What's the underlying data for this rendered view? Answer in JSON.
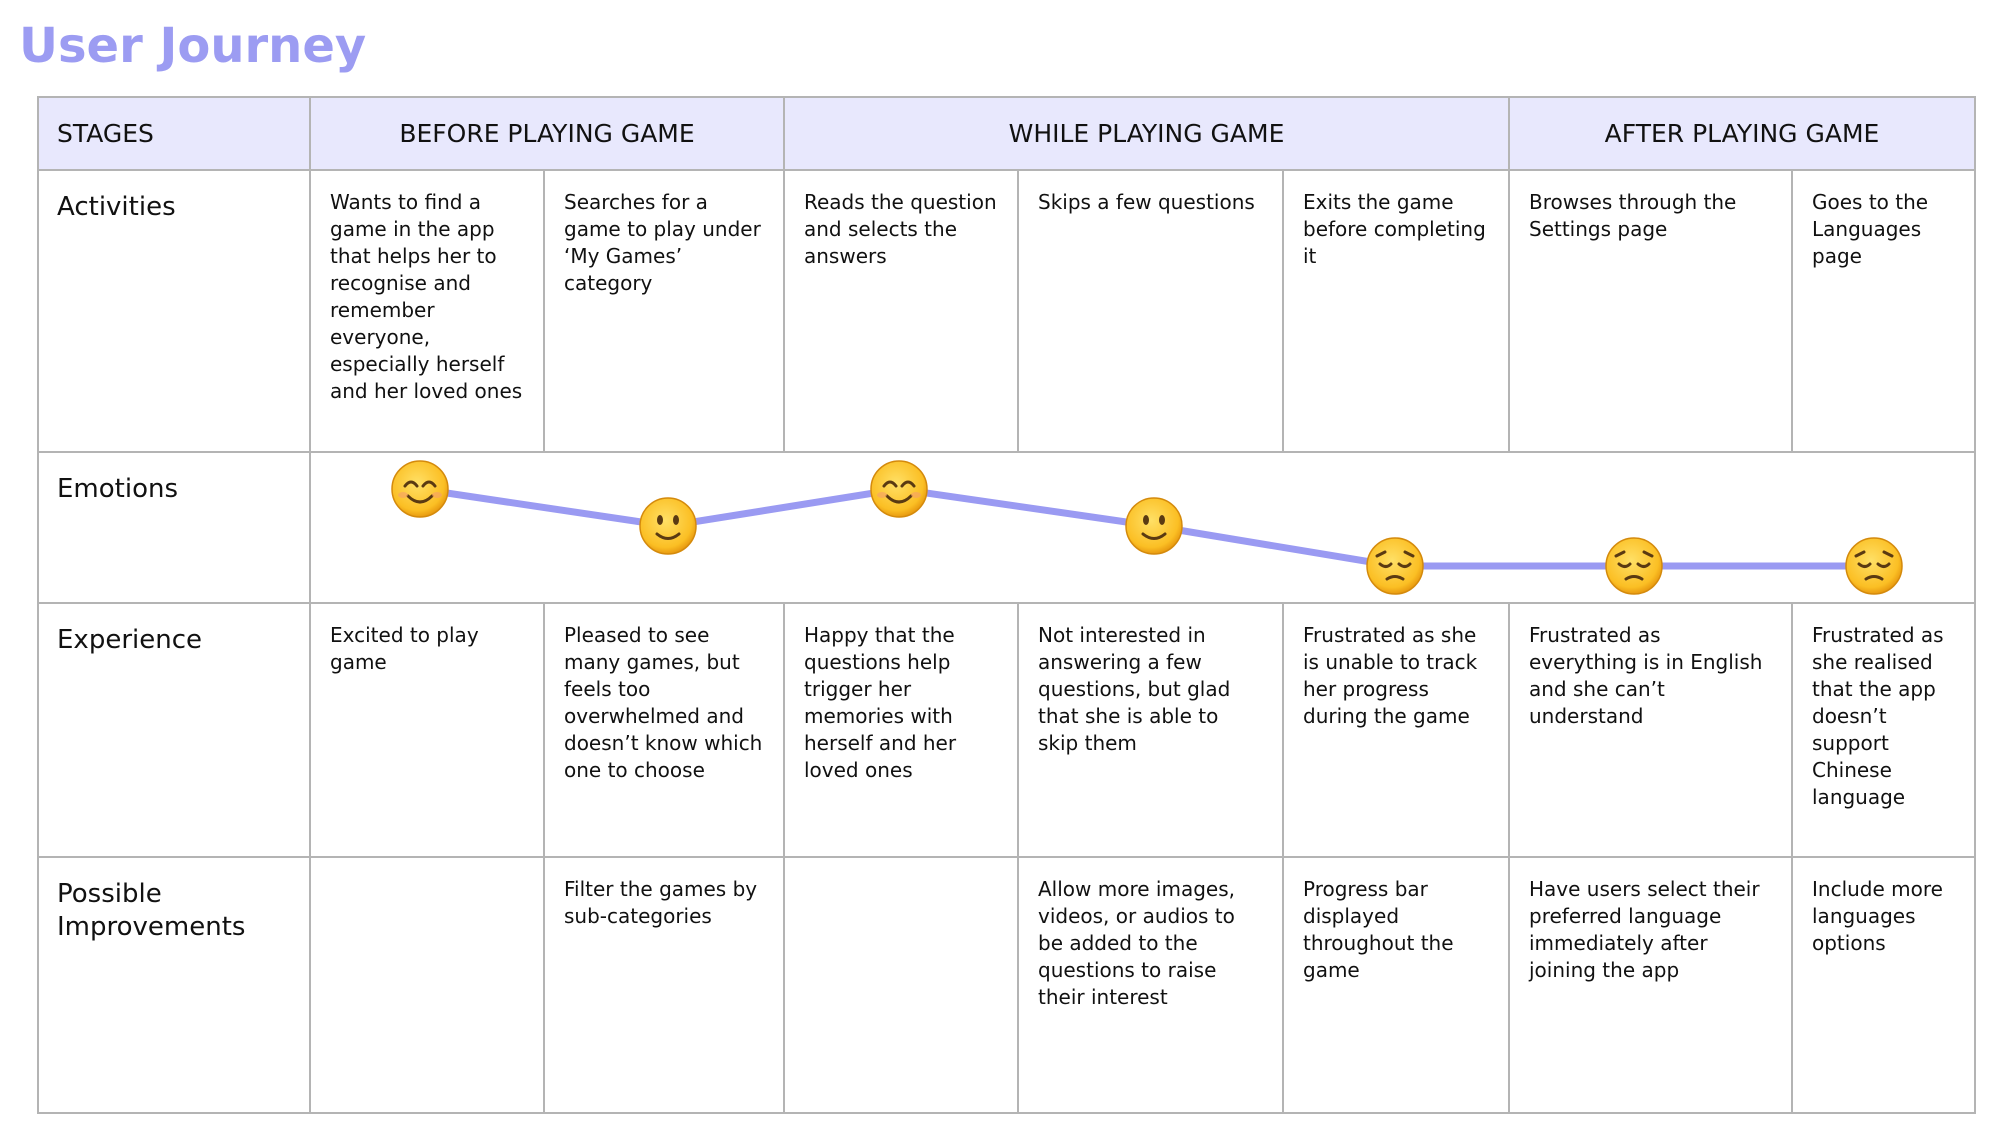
{
  "title": "User Journey",
  "table": {
    "header": {
      "stages": "STAGES",
      "phases": [
        "BEFORE PLAYING GAME",
        "WHILE PLAYING GAME",
        "AFTER PLAYING GAME"
      ]
    },
    "rows": [
      {
        "label": "Activities",
        "cells": [
          "Wants to find a game in the app that helps her to recognise and remember everyone, especially herself and her loved ones",
          "Searches for a game to play under ‘My Games’ category",
          "Reads the question and selects the answers",
          "Skips a few questions",
          "Exits the game before completing it",
          "Browses through the Settings page",
          "Goes to the Languages page"
        ]
      },
      {
        "label": "Emotions"
      },
      {
        "label": "Experience",
        "cells": [
          "Excited to play game",
          "Pleased to see many games, but feels too overwhelmed and doesn’t know which one to choose",
          "Happy that the questions help trigger her memories with herself and her loved ones",
          "Not interested in answering a few questions, but glad that she is able to skip them",
          "Frustrated as she is unable to track her progress during the game",
          "Frustrated as everything is in English and she can’t understand",
          "Frustrated as she realised that the app doesn’t support Chinese language"
        ]
      },
      {
        "label": "Possible Improvements",
        "cells": [
          null,
          "Filter the games by sub-categories",
          null,
          "Allow more images, videos, or audios to be added to the questions to raise their interest",
          "Progress bar displayed throughout the game",
          "Have users select their preferred language immediately after joining the app",
          "Include more languages options"
        ]
      }
    ]
  }
}
